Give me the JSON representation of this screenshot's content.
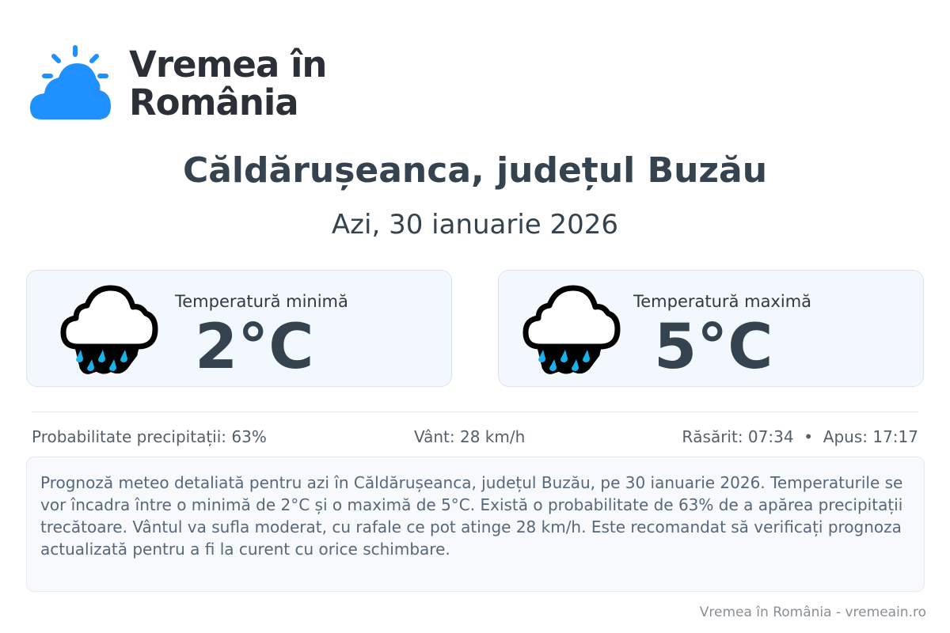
{
  "brand": {
    "line1": "Vremea în",
    "line2": "România",
    "logo_color": "#1e90ff"
  },
  "header": {
    "title": "Căldărușeanca, județul Buzău",
    "date": "Azi, 30 ianuarie 2026"
  },
  "cards": [
    {
      "label": "Temperatură minimă",
      "value": "2°C",
      "icon": "rain-cloud-icon"
    },
    {
      "label": "Temperatură maximă",
      "value": "5°C",
      "icon": "rain-cloud-icon"
    }
  ],
  "info": {
    "precipitation": "Probabilitate precipitații: 63%",
    "wind": "Vânt: 28 km/h",
    "sun": "Răsărit: 07:34  •  Apus: 17:17"
  },
  "description": "Prognoză meteo detaliată pentru azi în Căldărușeanca, județul Buzău, pe 30 ianuarie 2026. Temperaturile se vor încadra între o minimă de 2°C și o maximă de 5°C. Există o probabilitate de 63% de a apărea precipitații trecătoare. Vântul va sufla moderat, cu rafale ce pot atinge 28 km/h. Este recomandat să verificați prognoza actualizată pentru a fi la curent cu orice schimbare.",
  "footer": "Vremea în România - vremeain.ro",
  "colors": {
    "drop": "#1ab2ea",
    "text": "#34434f",
    "card_bg": "#f3f8fe"
  }
}
